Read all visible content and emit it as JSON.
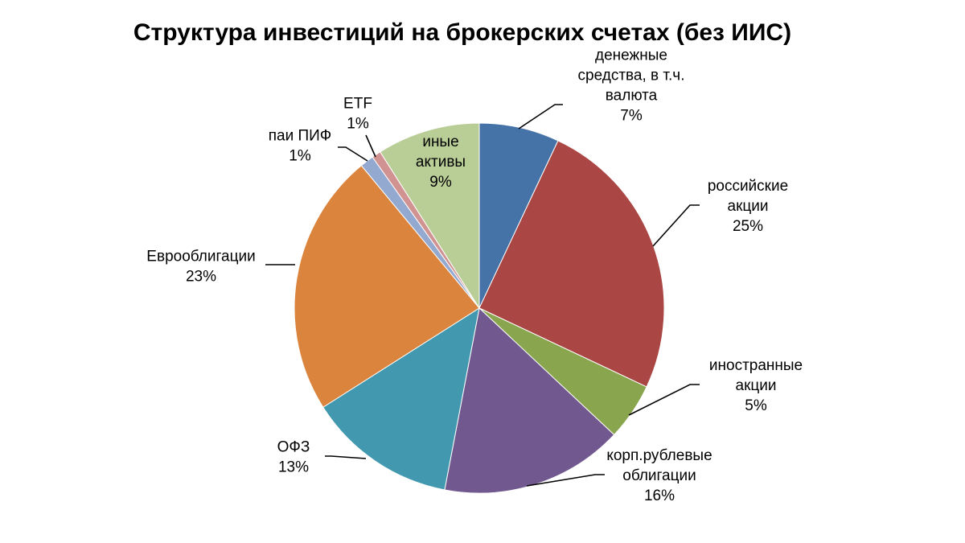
{
  "chart_data": {
    "type": "pie",
    "title": "Структура инвестиций на брокерских счетах (без ИИС)",
    "start_angle_deg": 0,
    "direction": "clockwise",
    "slices": [
      {
        "lines": [
          "денежные",
          "средства, в т.ч.",
          "валюта"
        ],
        "pct_label": "7%",
        "value": 7,
        "color": "#4572a7",
        "label_inside": false
      },
      {
        "lines": [
          "российские",
          "акции"
        ],
        "pct_label": "25%",
        "value": 25,
        "color": "#aa4643",
        "label_inside": false
      },
      {
        "lines": [
          "иностранные",
          "акции"
        ],
        "pct_label": "5%",
        "value": 5,
        "color": "#89a54e",
        "label_inside": false
      },
      {
        "lines": [
          "корп.рублевые",
          "облигации"
        ],
        "pct_label": "16%",
        "value": 16,
        "color": "#71588f",
        "label_inside": false
      },
      {
        "lines": [
          "ОФЗ"
        ],
        "pct_label": "13%",
        "value": 13,
        "color": "#4198af",
        "label_inside": false
      },
      {
        "lines": [
          "Еврооблигации"
        ],
        "pct_label": "23%",
        "value": 23,
        "color": "#db843d",
        "label_inside": false
      },
      {
        "lines": [
          "паи ПИФ"
        ],
        "pct_label": "1%",
        "value": 1.2,
        "color": "#93a9cf",
        "label_inside": false
      },
      {
        "lines": [
          "ETF"
        ],
        "pct_label": "1%",
        "value": 0.8,
        "color": "#d19392",
        "label_inside": false
      },
      {
        "lines": [
          "иные",
          "активы"
        ],
        "pct_label": "9%",
        "value": 9,
        "color": "#b9cd96",
        "label_inside": true
      }
    ]
  }
}
